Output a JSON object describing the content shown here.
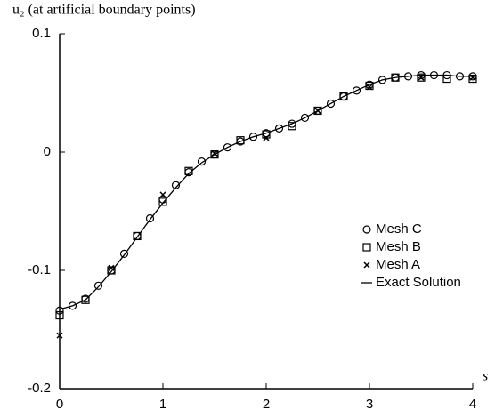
{
  "chart_data": {
    "type": "line",
    "ylabel": "u₂ (at artificial boundary points)",
    "xlabel": "s",
    "xlim": [
      0,
      4
    ],
    "xticks": [
      0,
      1,
      2,
      3,
      4
    ],
    "ylim": [
      -0.2,
      0.1
    ],
    "yticks": [
      0.1,
      0,
      -0.1,
      -0.2
    ],
    "grid": false,
    "legend": "right",
    "series": [
      {
        "name": "Mesh C",
        "color": "#000000",
        "marker": "circle",
        "x": [
          0,
          0.125,
          0.25,
          0.375,
          0.5,
          0.625,
          0.75,
          0.875,
          1,
          1.125,
          1.25,
          1.375,
          1.5,
          1.625,
          1.75,
          1.875,
          2,
          2.125,
          2.25,
          2.375,
          2.5,
          2.625,
          2.75,
          2.875,
          3,
          3.125,
          3.25,
          3.375,
          3.5,
          3.625,
          3.75,
          3.875,
          4
        ],
        "values": [
          -0.134,
          -0.13,
          -0.124,
          -0.113,
          -0.1,
          -0.086,
          -0.071,
          -0.056,
          -0.04,
          -0.028,
          -0.017,
          -0.008,
          -0.002,
          0.004,
          0.009,
          0.013,
          0.016,
          0.02,
          0.024,
          0.029,
          0.035,
          0.041,
          0.047,
          0.052,
          0.057,
          0.061,
          0.063,
          0.064,
          0.065,
          0.065,
          0.065,
          0.064,
          0.064
        ]
      },
      {
        "name": "Mesh B",
        "color": "#000000",
        "marker": "square",
        "x": [
          0,
          0.25,
          0.5,
          0.75,
          1,
          1.25,
          1.5,
          1.75,
          2,
          2.25,
          2.5,
          2.75,
          3,
          3.25,
          3.5,
          3.75,
          4
        ],
        "values": [
          -0.138,
          -0.125,
          -0.1,
          -0.071,
          -0.042,
          -0.016,
          -0.002,
          0.01,
          0.015,
          0.022,
          0.035,
          0.047,
          0.056,
          0.063,
          0.063,
          0.062,
          0.062
        ]
      },
      {
        "name": "Mesh A",
        "color": "#000000",
        "marker": "cross",
        "x": [
          0,
          0.5,
          1,
          1.5,
          2,
          2.5,
          3,
          3.5,
          4
        ],
        "values": [
          -0.155,
          -0.098,
          -0.036,
          -0.001,
          0.012,
          0.035,
          0.055,
          0.063,
          0.063
        ]
      },
      {
        "name": "Exact Solution",
        "color": "#000000",
        "marker": "line",
        "x": [
          0,
          0.125,
          0.25,
          0.375,
          0.5,
          0.625,
          0.75,
          0.875,
          1,
          1.125,
          1.25,
          1.375,
          1.5,
          1.625,
          1.75,
          1.875,
          2,
          2.125,
          2.25,
          2.375,
          2.5,
          2.625,
          2.75,
          2.875,
          3,
          3.125,
          3.25,
          3.375,
          3.5,
          3.625,
          3.75,
          3.875,
          4
        ],
        "values": [
          -0.133,
          -0.13,
          -0.125,
          -0.114,
          -0.101,
          -0.087,
          -0.072,
          -0.057,
          -0.043,
          -0.03,
          -0.018,
          -0.009,
          -0.002,
          0.004,
          0.009,
          0.013,
          0.016,
          0.02,
          0.024,
          0.029,
          0.035,
          0.041,
          0.047,
          0.052,
          0.057,
          0.061,
          0.063,
          0.064,
          0.065,
          0.065,
          0.065,
          0.064,
          0.064
        ]
      }
    ]
  }
}
